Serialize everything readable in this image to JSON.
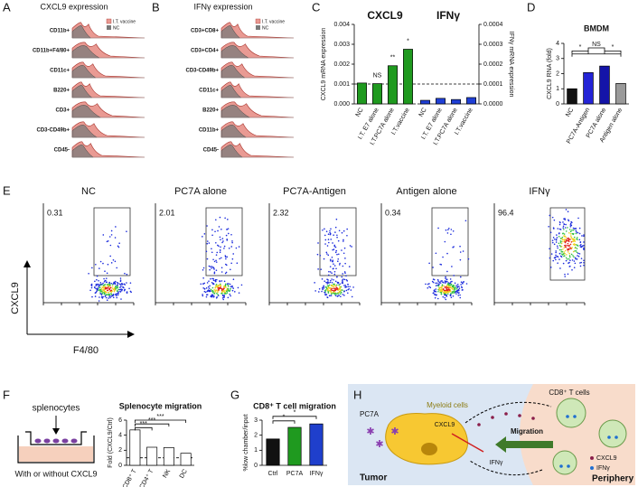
{
  "figure": {
    "panel_labels": [
      "A",
      "B",
      "C",
      "D",
      "E",
      "F",
      "G",
      "H"
    ],
    "A": {
      "title": "CXCL9 expression",
      "legend": [
        "I.T. vaccine",
        "NC"
      ],
      "rows": [
        "CD11b+",
        "CD11b+F4/80+",
        "CD11c+",
        "B220+",
        "CD3+",
        "CD3-CD49b+",
        "CD45-"
      ]
    },
    "B": {
      "title": "IFNγ expression",
      "legend": [
        "I.T. vaccine",
        "NC"
      ],
      "rows": [
        "CD3+CD8+",
        "CD3+CD4+",
        "CD3-CD49b+",
        "CD11c+",
        "B220+",
        "CD11b+",
        "CD45-"
      ]
    },
    "E": {
      "y_label": "CXCL9",
      "x_label": "F4/80",
      "plots": [
        {
          "title": "NC",
          "gate_percent": 0.31
        },
        {
          "title": "PC7A alone",
          "gate_percent": 2.01
        },
        {
          "title": "PC7A-Antigen",
          "gate_percent": 2.32
        },
        {
          "title": "Antigen alone",
          "gate_percent": 0.34
        },
        {
          "title": "IFNγ",
          "gate_percent": 96.4
        }
      ]
    },
    "F_diagram": {
      "label_top": "splenocytes",
      "label_bottom": "With or without CXCL9"
    },
    "H": {
      "myeloid": "Myeloid cells",
      "tcells": "CD8⁺ T cells",
      "pc7a": "PC7A",
      "cxcl9_center": "CXCL9",
      "migration": "Migration",
      "ifng_center": "IFNγ",
      "legend_cxcl9": "CXCL9",
      "legend_ifng": "IFNγ",
      "tumor": "Tumor",
      "periphery": "Periphery"
    }
  },
  "chart_data": [
    {
      "type": "bar",
      "title": "CXCL9",
      "y_label": "CXCL9 mRNA expression",
      "categories": [
        "NC",
        "I.T. E7 alone",
        "I.T.PC7A alone",
        "I.T.vaccine"
      ],
      "values": [
        0.00105,
        0.00102,
        0.00192,
        0.00275
      ],
      "color": "#1f9a1f",
      "ylim": [
        0,
        0.004
      ],
      "yticks": [
        {
          "value": 0,
          "label": "0.000"
        },
        {
          "value": 0.001,
          "label": "0.001"
        },
        {
          "value": 0.002,
          "label": "0.002"
        },
        {
          "value": 0.003,
          "label": "0.003"
        },
        {
          "value": 0.004,
          "label": "0.004"
        }
      ],
      "reference_line": 0.001,
      "annotations": [
        null,
        "NS",
        "**",
        "*"
      ]
    },
    {
      "type": "bar",
      "title": "IFNγ",
      "y_label": "IFNγ mRNA expression",
      "y_axis": "right",
      "categories": [
        "NC",
        "I.T. E7 alone",
        "I.T.PC7A alone",
        "I.T.vaccine"
      ],
      "values": [
        1.8e-05,
        2.8e-05,
        2.2e-05,
        3.2e-05
      ],
      "color": "#1f3fd6",
      "ylim": [
        0,
        0.0004
      ],
      "yticks": [
        {
          "value": 0,
          "label": "0.0000"
        },
        {
          "value": 0.0001,
          "label": "0.0001"
        },
        {
          "value": 0.0002,
          "label": "0.0002"
        },
        {
          "value": 0.0003,
          "label": "0.0003"
        },
        {
          "value": 0.0004,
          "label": "0.0004"
        }
      ],
      "reference_line": 0.0001
    },
    {
      "type": "bar",
      "title": "BMDM",
      "y_label": "CXCL9 RNA (fold)",
      "categories": [
        "NC",
        "PC7A-Antigen",
        "PC7A alone",
        "Antigen alone"
      ],
      "values": [
        1.0,
        2.07,
        2.5,
        1.35
      ],
      "colors": [
        "#111111",
        "#2424d6",
        "#1414a8",
        "#9a9a9a"
      ],
      "ylim": [
        0,
        4
      ],
      "yticks": [
        0,
        1,
        2,
        3,
        4
      ],
      "annotations": [
        "*",
        "NS",
        "*"
      ]
    },
    {
      "type": "bar",
      "title": "Splenocyte migration",
      "y_label": "Fold (CXCL9/Ctrl)",
      "categories": [
        "CD8⁺ T",
        "CD4⁺ T",
        "NK",
        "DC"
      ],
      "values": [
        4.7,
        2.4,
        2.35,
        1.6
      ],
      "color": "#ffffff",
      "ylim": [
        0,
        6
      ],
      "yticks": [
        0,
        2,
        4,
        6
      ],
      "reference_line": 1,
      "annotations": [
        "***",
        "***",
        "***"
      ]
    },
    {
      "type": "bar",
      "title": "CD8⁺ T cell migration",
      "y_label": "%low chamber/input",
      "categories": [
        "Ctrl",
        "PC7A",
        "IFNγ"
      ],
      "values": [
        1.75,
        2.52,
        2.75
      ],
      "colors": [
        "#111111",
        "#1f9a1f",
        "#1f3fcc"
      ],
      "ylim": [
        0,
        3
      ],
      "yticks": [
        0,
        1,
        2,
        3
      ],
      "annotations": [
        "*",
        "*"
      ]
    }
  ]
}
